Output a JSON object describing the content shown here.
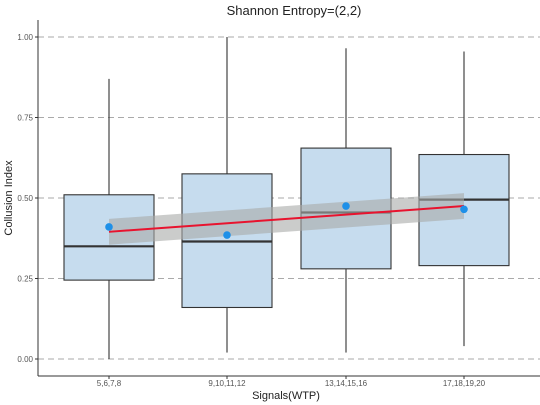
{
  "chart_data": {
    "type": "boxplot",
    "title": "Shannon Entropy=(2,2)",
    "xlabel": "Signals(WTP)",
    "ylabel": "Collusion Index",
    "ylim": [
      0,
      1
    ],
    "yticks": [
      0.0,
      0.25,
      0.5,
      0.75,
      1.0
    ],
    "ytick_labels": [
      "0.00",
      "0.25",
      "0.50",
      "0.75",
      "1.00"
    ],
    "grid": "horizontal-dashed",
    "categories": [
      "5,6,7,8",
      "9,10,11,12",
      "13,14,15,16",
      "17,18,19,20"
    ],
    "boxes": [
      {
        "category": "5,6,7,8",
        "min": 0.0,
        "q1": 0.245,
        "median": 0.35,
        "q3": 0.51,
        "max": 0.87,
        "mean": 0.41
      },
      {
        "category": "9,10,11,12",
        "min": 0.02,
        "q1": 0.16,
        "median": 0.365,
        "q3": 0.575,
        "max": 1.0,
        "mean": 0.385
      },
      {
        "category": "13,14,15,16",
        "min": 0.02,
        "q1": 0.28,
        "median": 0.455,
        "q3": 0.655,
        "max": 0.965,
        "mean": 0.475
      },
      {
        "category": "17,18,19,20",
        "min": 0.04,
        "q1": 0.29,
        "median": 0.495,
        "q3": 0.635,
        "max": 0.955,
        "mean": 0.465
      }
    ],
    "trend_line": {
      "x": [
        1,
        4
      ],
      "y": [
        0.395,
        0.475
      ],
      "ci_lower": [
        0.355,
        0.435
      ],
      "ci_upper": [
        0.435,
        0.515
      ]
    },
    "colors": {
      "box_fill": "#c6dcee",
      "box_stroke": "#333333",
      "mean_point": "#1e90e8",
      "trend_line": "#e8132e",
      "ci_band": "#a9aaa9",
      "grid": "#aaaaaa"
    }
  }
}
